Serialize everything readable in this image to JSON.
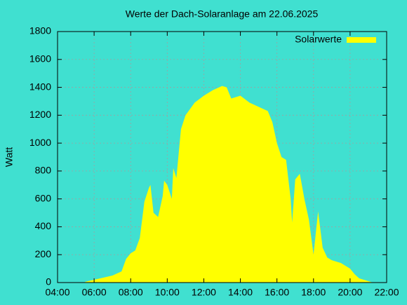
{
  "chart_data": {
    "type": "area",
    "title": "Werte der Dach-Solaranlage am 22.06.2025",
    "y_label": "Watt",
    "x": [
      5.5,
      6.0,
      6.5,
      7.0,
      7.5,
      7.75,
      8.0,
      8.25,
      8.5,
      8.75,
      9.0,
      9.08,
      9.25,
      9.5,
      9.75,
      9.83,
      10.0,
      10.25,
      10.33,
      10.5,
      10.75,
      11.0,
      11.5,
      12.0,
      12.5,
      13.0,
      13.25,
      13.5,
      14.0,
      14.5,
      15.0,
      15.5,
      15.75,
      16.0,
      16.25,
      16.5,
      16.75,
      16.83,
      17.0,
      17.25,
      17.5,
      17.75,
      18.0,
      18.25,
      18.5,
      18.75,
      19.0,
      19.5,
      20.0,
      20.25,
      20.5,
      20.75,
      21.0,
      21.25
    ],
    "series": [
      {
        "name": "Solarwerte",
        "color": "#ffff00",
        "values": [
          5,
          20,
          35,
          50,
          80,
          170,
          210,
          230,
          320,
          580,
          680,
          700,
          500,
          470,
          620,
          730,
          700,
          600,
          820,
          750,
          1100,
          1200,
          1290,
          1340,
          1380,
          1410,
          1400,
          1320,
          1340,
          1290,
          1260,
          1230,
          1150,
          1000,
          900,
          880,
          600,
          430,
          740,
          780,
          600,
          450,
          200,
          510,
          250,
          180,
          160,
          140,
          100,
          60,
          30,
          20,
          10,
          0
        ]
      }
    ],
    "xlim": [
      4,
      22
    ],
    "xticks": [
      {
        "value": 4,
        "label": "04:00"
      },
      {
        "value": 6,
        "label": "06:00"
      },
      {
        "value": 8,
        "label": "08:00"
      },
      {
        "value": 10,
        "label": "10:00"
      },
      {
        "value": 12,
        "label": "12:00"
      },
      {
        "value": 14,
        "label": "14:00"
      },
      {
        "value": 16,
        "label": "16:00"
      },
      {
        "value": 18,
        "label": "18:00"
      },
      {
        "value": 20,
        "label": "20:00"
      },
      {
        "value": 22,
        "label": "22:00"
      }
    ],
    "ylim": [
      0,
      1800
    ],
    "yticks": [
      0,
      200,
      400,
      600,
      800,
      1000,
      1200,
      1400,
      1600,
      1800
    ],
    "grid": true,
    "legend": "top-right"
  }
}
